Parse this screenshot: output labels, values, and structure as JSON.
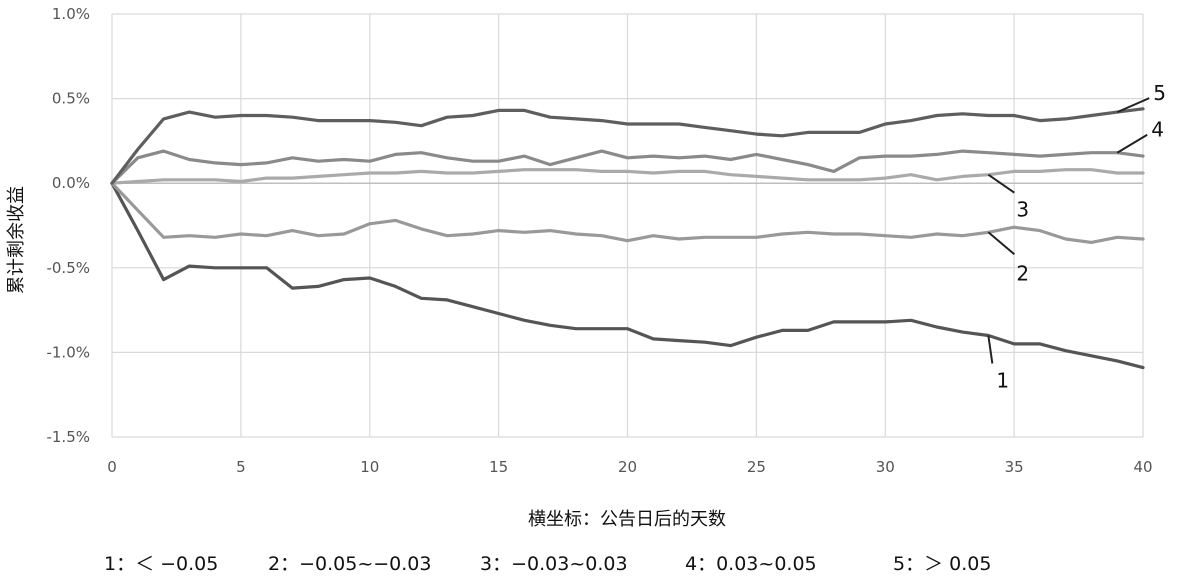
{
  "chart_data": {
    "type": "line",
    "xlabel": "横坐标：公告日后的天数",
    "ylabel": "累计剩余收益",
    "xlim": [
      0,
      40
    ],
    "ylim": [
      -1.5,
      1.0
    ],
    "x_ticks": [
      "0",
      "5",
      "10",
      "15",
      "20",
      "25",
      "30",
      "35",
      "40"
    ],
    "y_ticks": [
      "1.0%",
      "0.5%",
      "0.0%",
      "-0.5%",
      "-1.0%",
      "-1.5%"
    ],
    "grid": true,
    "legend": [
      "1：＜ −0.05",
      "2：−0.05~−0.03",
      "3：−0.03~0.03",
      "4：0.03~0.05",
      "5：＞ 0.05"
    ],
    "x": [
      0,
      1,
      2,
      3,
      4,
      5,
      6,
      7,
      8,
      9,
      10,
      11,
      12,
      13,
      14,
      15,
      16,
      17,
      18,
      19,
      20,
      21,
      22,
      23,
      24,
      25,
      26,
      27,
      28,
      29,
      30,
      31,
      32,
      33,
      34,
      35,
      36,
      37,
      38,
      39,
      40
    ],
    "series": [
      {
        "name": "1",
        "color": "#555555",
        "values": [
          0,
          -0.28,
          -0.57,
          -0.49,
          -0.5,
          -0.5,
          -0.5,
          -0.62,
          -0.61,
          -0.57,
          -0.56,
          -0.61,
          -0.68,
          -0.69,
          -0.73,
          -0.77,
          -0.81,
          -0.84,
          -0.86,
          -0.86,
          -0.86,
          -0.92,
          -0.93,
          -0.94,
          -0.96,
          -0.91,
          -0.87,
          -0.87,
          -0.82,
          -0.82,
          -0.82,
          -0.81,
          -0.85,
          -0.88,
          -0.9,
          -0.95,
          -0.95,
          -0.99,
          -1.02,
          -1.05,
          -1.09
        ]
      },
      {
        "name": "2",
        "color": "#999999",
        "values": [
          0,
          -0.16,
          -0.32,
          -0.31,
          -0.32,
          -0.3,
          -0.31,
          -0.28,
          -0.31,
          -0.3,
          -0.24,
          -0.22,
          -0.27,
          -0.31,
          -0.3,
          -0.28,
          -0.29,
          -0.28,
          -0.3,
          -0.31,
          -0.34,
          -0.31,
          -0.33,
          -0.32,
          -0.32,
          -0.32,
          -0.3,
          -0.29,
          -0.3,
          -0.3,
          -0.31,
          -0.32,
          -0.3,
          -0.31,
          -0.29,
          -0.26,
          -0.28,
          -0.33,
          -0.35,
          -0.32,
          -0.33
        ]
      },
      {
        "name": "3",
        "color": "#aaaaaa",
        "values": [
          0,
          0.01,
          0.02,
          0.02,
          0.02,
          0.01,
          0.03,
          0.03,
          0.04,
          0.05,
          0.06,
          0.06,
          0.07,
          0.06,
          0.06,
          0.07,
          0.08,
          0.08,
          0.08,
          0.07,
          0.07,
          0.06,
          0.07,
          0.07,
          0.05,
          0.04,
          0.03,
          0.02,
          0.02,
          0.02,
          0.03,
          0.05,
          0.02,
          0.04,
          0.05,
          0.07,
          0.07,
          0.08,
          0.08,
          0.06,
          0.06
        ]
      },
      {
        "name": "4",
        "color": "#8a8a8a",
        "values": [
          0,
          0.15,
          0.19,
          0.14,
          0.12,
          0.11,
          0.12,
          0.15,
          0.13,
          0.14,
          0.13,
          0.17,
          0.18,
          0.15,
          0.13,
          0.13,
          0.16,
          0.11,
          0.15,
          0.19,
          0.15,
          0.16,
          0.15,
          0.16,
          0.14,
          0.17,
          0.14,
          0.11,
          0.07,
          0.15,
          0.16,
          0.16,
          0.17,
          0.19,
          0.18,
          0.17,
          0.16,
          0.17,
          0.18,
          0.18,
          0.16
        ]
      },
      {
        "name": "5",
        "color": "#5e5e5e",
        "values": [
          0,
          0.2,
          0.38,
          0.42,
          0.39,
          0.4,
          0.4,
          0.39,
          0.37,
          0.37,
          0.37,
          0.36,
          0.34,
          0.39,
          0.4,
          0.43,
          0.43,
          0.39,
          0.38,
          0.37,
          0.35,
          0.35,
          0.35,
          0.33,
          0.31,
          0.29,
          0.28,
          0.3,
          0.3,
          0.3,
          0.35,
          0.37,
          0.4,
          0.41,
          0.4,
          0.4,
          0.37,
          0.38,
          0.4,
          0.42,
          0.44
        ]
      }
    ]
  }
}
